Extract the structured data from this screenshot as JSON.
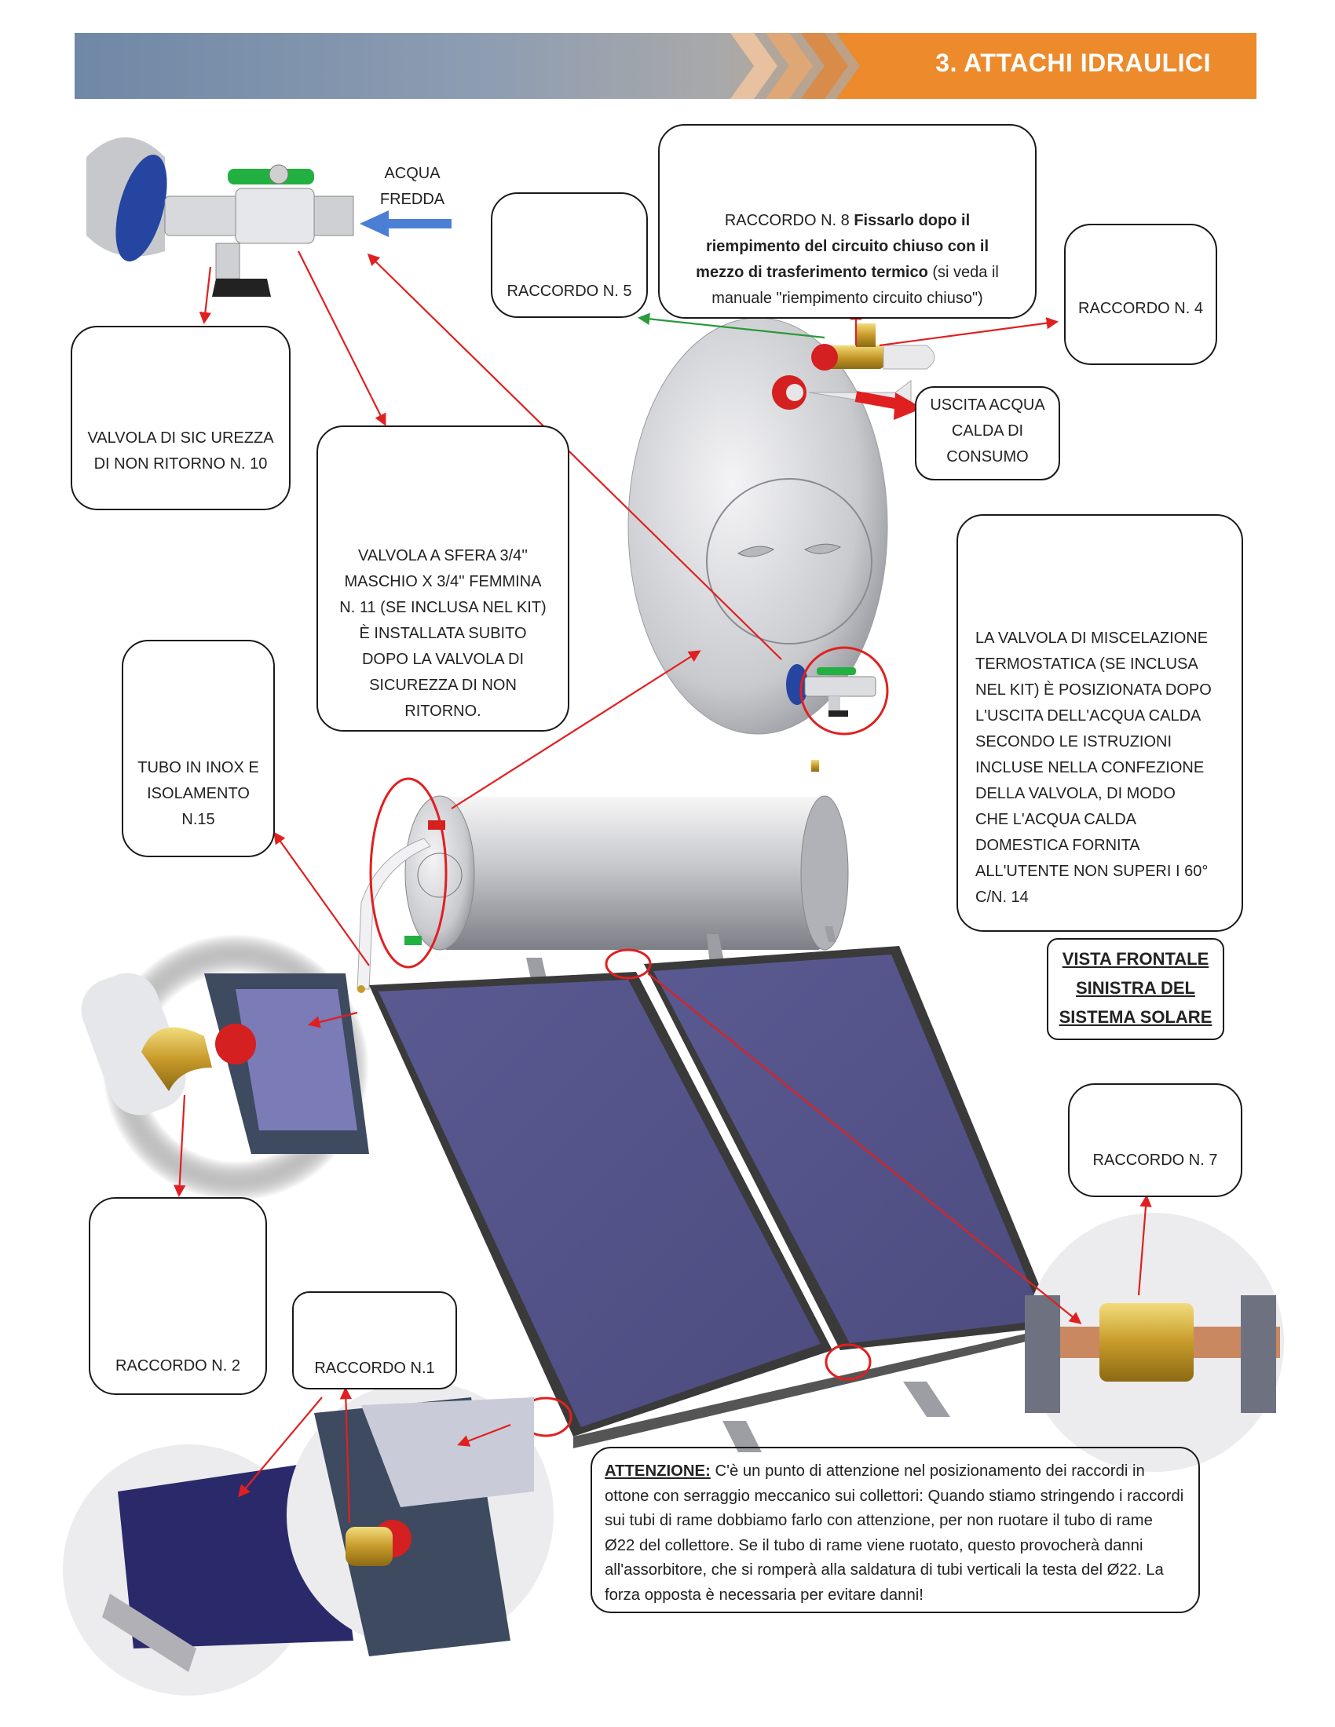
{
  "header": {
    "title": "3. ATTACHI IDRAULICI"
  },
  "labels": {
    "acqua_fredda": [
      "ACQUA",
      "FREDDA"
    ],
    "uscita": [
      "USCITA ACQUA",
      "CALDA DI",
      "CONSUMO"
    ],
    "vista": [
      "VISTA FRONTALE",
      "SINISTRA DEL",
      "SISTEMA SOLARE"
    ]
  },
  "callouts": {
    "valvola10": [
      "VALVOLA DI SIC UREZZA",
      "DI NON RITORNO N. 10"
    ],
    "raccordo5": "RACCORDO N. 5",
    "raccordo8": {
      "l1_plain": "RACCORDO N. 8 ",
      "l1_bold": "Fissarlo dopo il",
      "l2_bold": "riempimento del circuito chiuso con il",
      "l3_bold": "mezzo di trasferimento termico",
      "l3_plain": " (si veda il",
      "l4": "manuale \"riempimento circuito chiuso\")"
    },
    "raccordo4": "RACCORDO N. 4",
    "valvola11": [
      "VALVOLA A SFERA 3/4''",
      "MASCHIO X 3/4'' FEMMINA",
      "N. 11 (SE INCLUSA NEL KIT)",
      "È INSTALLATA SUBITO",
      "DOPO LA VALVOLA DI",
      "SICUREZZA DI NON",
      "RITORNO."
    ],
    "miscelazione": [
      "LA VALVOLA DI MISCELAZIONE",
      "TERMOSTATICA (SE INCLUSA",
      "NEL KIT) È POSIZIONATA DOPO",
      "L'USCITA DELL'ACQUA CALDA",
      "SECONDO LE ISTRUZIONI",
      "INCLUSE NELLA CONFEZIONE",
      "DELLA VALVOLA, DI MODO",
      "CHE L'ACQUA CALDA",
      "DOMESTICA FORNITA",
      "ALL'UTENTE NON SUPERI I 60°",
      "C/N. 14"
    ],
    "tubo15": [
      "TUBO IN INOX E",
      "ISOLAMENTO",
      "N.15"
    ],
    "raccordo7": "RACCORDO N. 7",
    "raccordo2": "RACCORDO N. 2",
    "raccordo1": "RACCORDO N.1"
  },
  "attention": {
    "label": "ATTENZIONE:",
    "text": " C'è un punto di attenzione nel posizionamento dei raccordi in ottone con serraggio meccanico sui collettori: Quando stiamo stringendo i raccordi sui tubi di rame dobbiamo farlo con attenzione, per non ruotare il tubo di rame Ø22 del collettore. Se il tubo di rame viene ruotato, questo provocherà danni all'assorbitore, che si romperà alla saldatura di tubi verticali la testa del Ø22. La forza opposta è necessaria per evitare danni!"
  },
  "colors": {
    "accent": "#ec8a2c",
    "header_blue": "#6f88a6",
    "arrow_red": "#e02020",
    "panel_blue": "#545388",
    "arrow_blue": "#4a7fd4",
    "arrow_green": "#2a9a3a"
  }
}
